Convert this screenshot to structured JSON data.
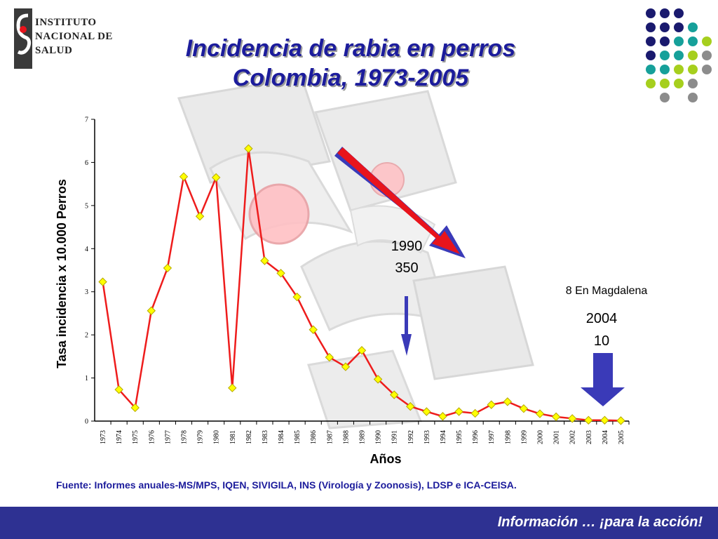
{
  "logo": {
    "line1": "INSTITUTO",
    "line2": "NACIONAL DE",
    "line3": "SALUD",
    "icon": "ins-logo-icon"
  },
  "title": {
    "line1": "Incidencia de rabia en perros",
    "line2": "Colombia, 1973-2005"
  },
  "annotations": {
    "a1990_year": "1990",
    "a1990_value": "350",
    "magdalena": "8 En Magdalena",
    "a2004_year": "2004",
    "a2004_value": "10"
  },
  "source": "Fuente: Informes anuales-MS/MPS, IQEN, SIVIGILA, INS (Virología y Zoonosis), LDSP e ICA-CEISA.",
  "footer": "Información … ¡para la acción!",
  "colors": {
    "title": "#1c1c9c",
    "line": "#ee1c1c",
    "marker_fill": "#ffff00",
    "marker_stroke": "#b5a800",
    "footer_bg": "#2e3192",
    "arrow_red": "#e8141c",
    "arrow_blue": "#3a3ab8",
    "dot_navy": "#1a1a6e",
    "dot_teal": "#16a09a",
    "dot_lime": "#a6cf1e",
    "dot_gray": "#8c8c8c"
  },
  "chart_data": {
    "type": "line",
    "xlabel": "Años",
    "ylabel": "Tasa incidencia x 10.000 Perros",
    "ylim": [
      0,
      7
    ],
    "yticks": [
      "0",
      "1",
      "2",
      "3",
      "4",
      "5",
      "6",
      "7"
    ],
    "categories": [
      "1973",
      "1974",
      "1975",
      "1976",
      "1977",
      "1978",
      "1979",
      "1980",
      "1981",
      "1982",
      "1983",
      "1984",
      "1985",
      "1986",
      "1987",
      "1988",
      "1989",
      "1990",
      "1991",
      "1992",
      "1993",
      "1994",
      "1995",
      "1996",
      "1997",
      "1998",
      "1999",
      "2000",
      "2001",
      "2002",
      "2003",
      "2004",
      "2005"
    ],
    "series": [
      {
        "values": [
          3.23,
          0.73,
          0.31,
          2.56,
          3.55,
          5.67,
          4.75,
          5.65,
          0.77,
          6.32,
          3.72,
          3.43,
          2.88,
          2.12,
          1.48,
          1.26,
          1.64,
          0.97,
          0.61,
          0.34,
          0.22,
          0.11,
          0.22,
          0.18,
          0.38,
          0.45,
          0.29,
          0.17,
          0.1,
          0.06,
          0.02,
          0.02,
          0.01
        ]
      }
    ],
    "grid": false,
    "legend": "none"
  }
}
